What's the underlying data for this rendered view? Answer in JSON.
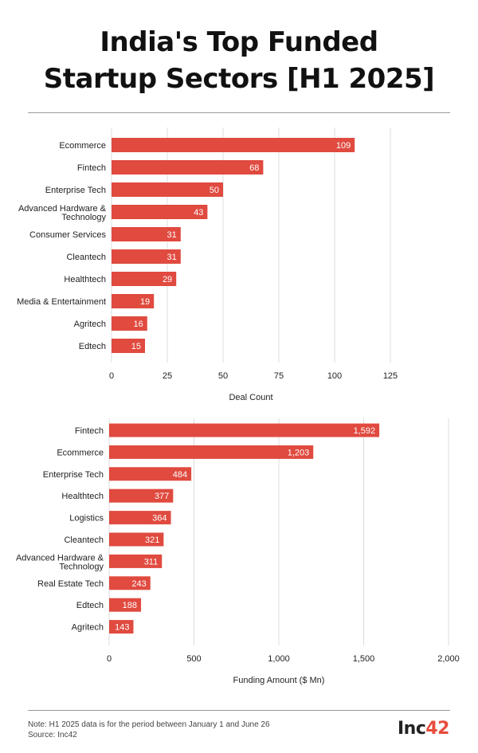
{
  "header": {
    "title_line1": "India's Top Funded",
    "title_line2": "Startup Sectors [H1 2025]"
  },
  "chart_data": [
    {
      "type": "bar",
      "orientation": "horizontal",
      "categories": [
        "Ecommerce",
        "Fintech",
        "Enterprise Tech",
        "Advanced Hardware & Technology",
        "Consumer Services",
        "Cleantech",
        "Healthtech",
        "Media & Entertainment",
        "Agritech",
        "Edtech"
      ],
      "category_lines": [
        [
          "Ecommerce"
        ],
        [
          "Fintech"
        ],
        [
          "Enterprise Tech"
        ],
        [
          "Advanced Hardware &",
          "Technology"
        ],
        [
          "Consumer Services"
        ],
        [
          "Cleantech"
        ],
        [
          "Healthtech"
        ],
        [
          "Media & Entertainment"
        ],
        [
          "Agritech"
        ],
        [
          "Edtech"
        ]
      ],
      "values": [
        109,
        68,
        50,
        43,
        31,
        31,
        29,
        19,
        16,
        15
      ],
      "value_labels": [
        "109",
        "68",
        "50",
        "43",
        "31",
        "31",
        "29",
        "19",
        "16",
        "15"
      ],
      "xlabel": "Deal Count",
      "xlim": [
        0,
        125
      ],
      "xticks": [
        0,
        25,
        50,
        75,
        100,
        125
      ],
      "xtick_labels": [
        "0",
        "25",
        "50",
        "75",
        "100",
        "125"
      ],
      "grid": true,
      "bar_color": "#e04a3f"
    },
    {
      "type": "bar",
      "orientation": "horizontal",
      "categories": [
        "Fintech",
        "Ecommerce",
        "Enterprise Tech",
        "Healthtech",
        "Logistics",
        "Cleantech",
        "Advanced Hardware & Technology",
        "Real Estate Tech",
        "Edtech",
        "Agritech"
      ],
      "category_lines": [
        [
          "Fintech"
        ],
        [
          "Ecommerce"
        ],
        [
          "Enterprise Tech"
        ],
        [
          "Healthtech"
        ],
        [
          "Logistics"
        ],
        [
          "Cleantech"
        ],
        [
          "Advanced Hardware &",
          "Technology"
        ],
        [
          "Real Estate Tech"
        ],
        [
          "Edtech"
        ],
        [
          "Agritech"
        ]
      ],
      "values": [
        1592,
        1203,
        484,
        377,
        364,
        321,
        311,
        243,
        188,
        143
      ],
      "value_labels": [
        "1,592",
        "1,203",
        "484",
        "377",
        "364",
        "321",
        "311",
        "243",
        "188",
        "143"
      ],
      "xlabel": "Funding Amount ($ Mn)",
      "xlim": [
        0,
        2000
      ],
      "xticks": [
        0,
        500,
        1000,
        1500,
        2000
      ],
      "xtick_labels": [
        "0",
        "500",
        "1,000",
        "1,500",
        "2,000"
      ],
      "grid": true,
      "bar_color": "#e04a3f"
    }
  ],
  "footer": {
    "note": "Note: H1 2025 data is for the period between January 1 and June 26",
    "source": "Source: Inc42",
    "logo_text": "Inc",
    "logo_accent": "42"
  }
}
